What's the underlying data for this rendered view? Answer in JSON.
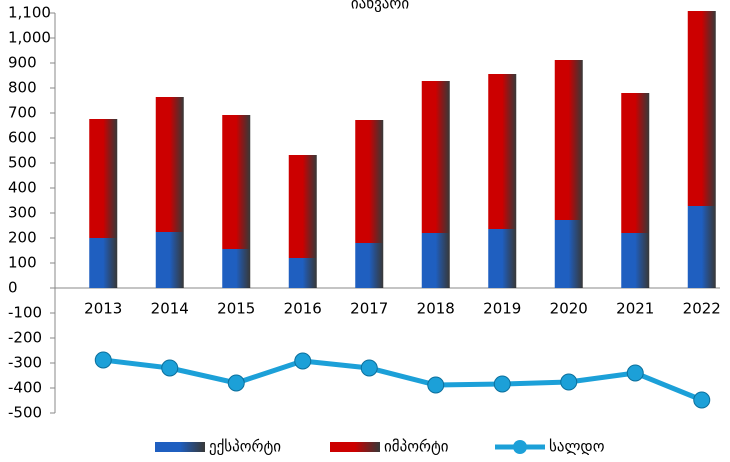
{
  "chart_data": {
    "type": "bar",
    "title": "იანვარი",
    "categories": [
      "2013",
      "2014",
      "2015",
      "2016",
      "2017",
      "2018",
      "2019",
      "2020",
      "2021",
      "2022"
    ],
    "series": [
      {
        "name": "ექსპორტი",
        "color": "#1f5fc0",
        "values": [
          200,
          224,
          156,
          120,
          180,
          220,
          236,
          272,
          220,
          328
        ]
      },
      {
        "name": "იმპორტი",
        "color": "#cc0000",
        "values": [
          476,
          540,
          536,
          412,
          492,
          608,
          620,
          640,
          560,
          780
        ]
      },
      {
        "name": "სალდო",
        "type": "line",
        "color": "#1ca0d8",
        "values": [
          -288,
          -320,
          -380,
          -292,
          -320,
          -388,
          -384,
          -376,
          -340,
          -448
        ]
      }
    ],
    "ylim": [
      -500,
      1100
    ],
    "yticks": [
      -500,
      -400,
      -300,
      -200,
      -100,
      0,
      100,
      200,
      300,
      400,
      500,
      600,
      700,
      800,
      900,
      {
        "value": 1000,
        "label": "1,000"
      },
      {
        "value": 1100,
        "label": "1,100"
      }
    ],
    "legend": "bottom"
  }
}
